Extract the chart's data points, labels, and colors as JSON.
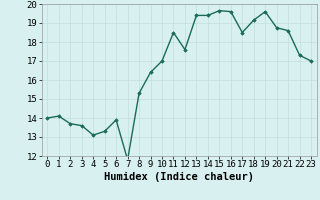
{
  "x": [
    0,
    1,
    2,
    3,
    4,
    5,
    6,
    7,
    8,
    9,
    10,
    11,
    12,
    13,
    14,
    15,
    16,
    17,
    18,
    19,
    20,
    21,
    22,
    23
  ],
  "y": [
    14.0,
    14.1,
    13.7,
    13.6,
    13.1,
    13.3,
    13.9,
    11.8,
    15.3,
    16.4,
    17.0,
    18.5,
    17.6,
    19.4,
    19.4,
    19.65,
    19.6,
    18.5,
    19.15,
    19.6,
    18.75,
    18.6,
    17.3,
    17.0
  ],
  "line_color": "#1a6b5a",
  "marker": "D",
  "marker_size": 1.8,
  "linewidth": 1.0,
  "xlabel": "Humidex (Indice chaleur)",
  "xlim": [
    -0.5,
    23.5
  ],
  "ylim": [
    12,
    20
  ],
  "yticks": [
    12,
    13,
    14,
    15,
    16,
    17,
    18,
    19,
    20
  ],
  "xticks": [
    0,
    1,
    2,
    3,
    4,
    5,
    6,
    7,
    8,
    9,
    10,
    11,
    12,
    13,
    14,
    15,
    16,
    17,
    18,
    19,
    20,
    21,
    22,
    23
  ],
  "bg_color": "#d9f0f0",
  "grid_color": "#c0dede",
  "xlabel_fontsize": 7.5,
  "tick_fontsize": 6.5
}
